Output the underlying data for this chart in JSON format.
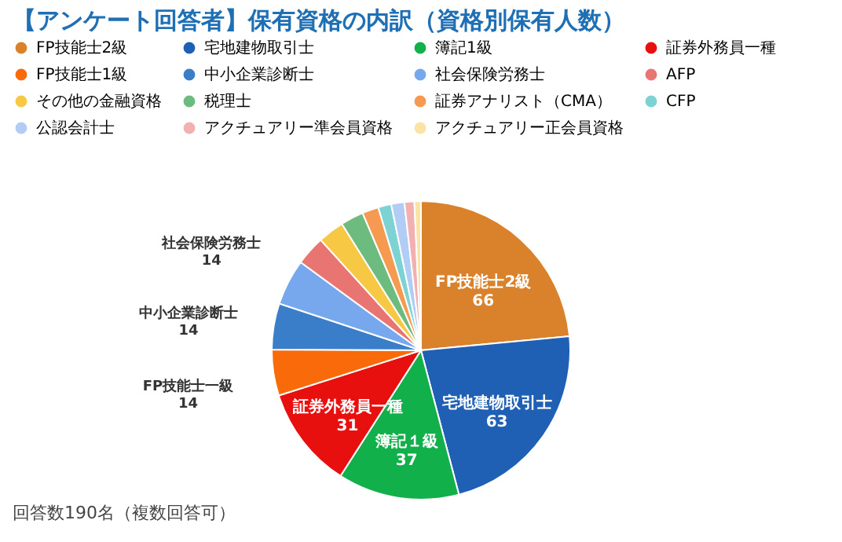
{
  "chart_data": {
    "type": "pie",
    "title": "【アンケート回答者】保有資格の内訳（資格別保有人数）",
    "categories": [
      "FP技能士2級",
      "宅地建物取引士",
      "簿記1級",
      "証券外務員一種",
      "FP技能士1級",
      "中小企業診断士",
      "社会保険労務士",
      "AFP",
      "その他の金融資格",
      "税理士",
      "証券アナリスト（CMA）",
      "CFP",
      "公認会計士",
      "アクチュアリー準会員資格",
      "アクチュアリー正会員資格"
    ],
    "values": [
      66,
      63,
      37,
      31,
      14,
      14,
      14,
      9,
      8,
      7,
      5,
      4,
      4,
      3,
      2
    ],
    "colors": [
      "#d9822b",
      "#1f5fb4",
      "#12b04a",
      "#e8100f",
      "#f96a0a",
      "#3a7dc9",
      "#77a8ee",
      "#e87572",
      "#f6c844",
      "#6dbb7e",
      "#f59a50",
      "#7dd3d3",
      "#b2cdf5",
      "#f2b0b0",
      "#fbe3a3"
    ],
    "value_labels": [
      "FP技能士2級\n66",
      "宅地建物取引士\n63",
      "簿記１級\n37",
      "証券外務員一種\n31",
      "FP技能士一級\n14",
      "中小企業診断士\n14",
      "社会保険労務士\n14",
      null,
      null,
      null,
      null,
      null,
      null,
      null,
      null
    ],
    "legend": "top",
    "annotations": [
      "回答数190名（複数回答可）"
    ]
  }
}
